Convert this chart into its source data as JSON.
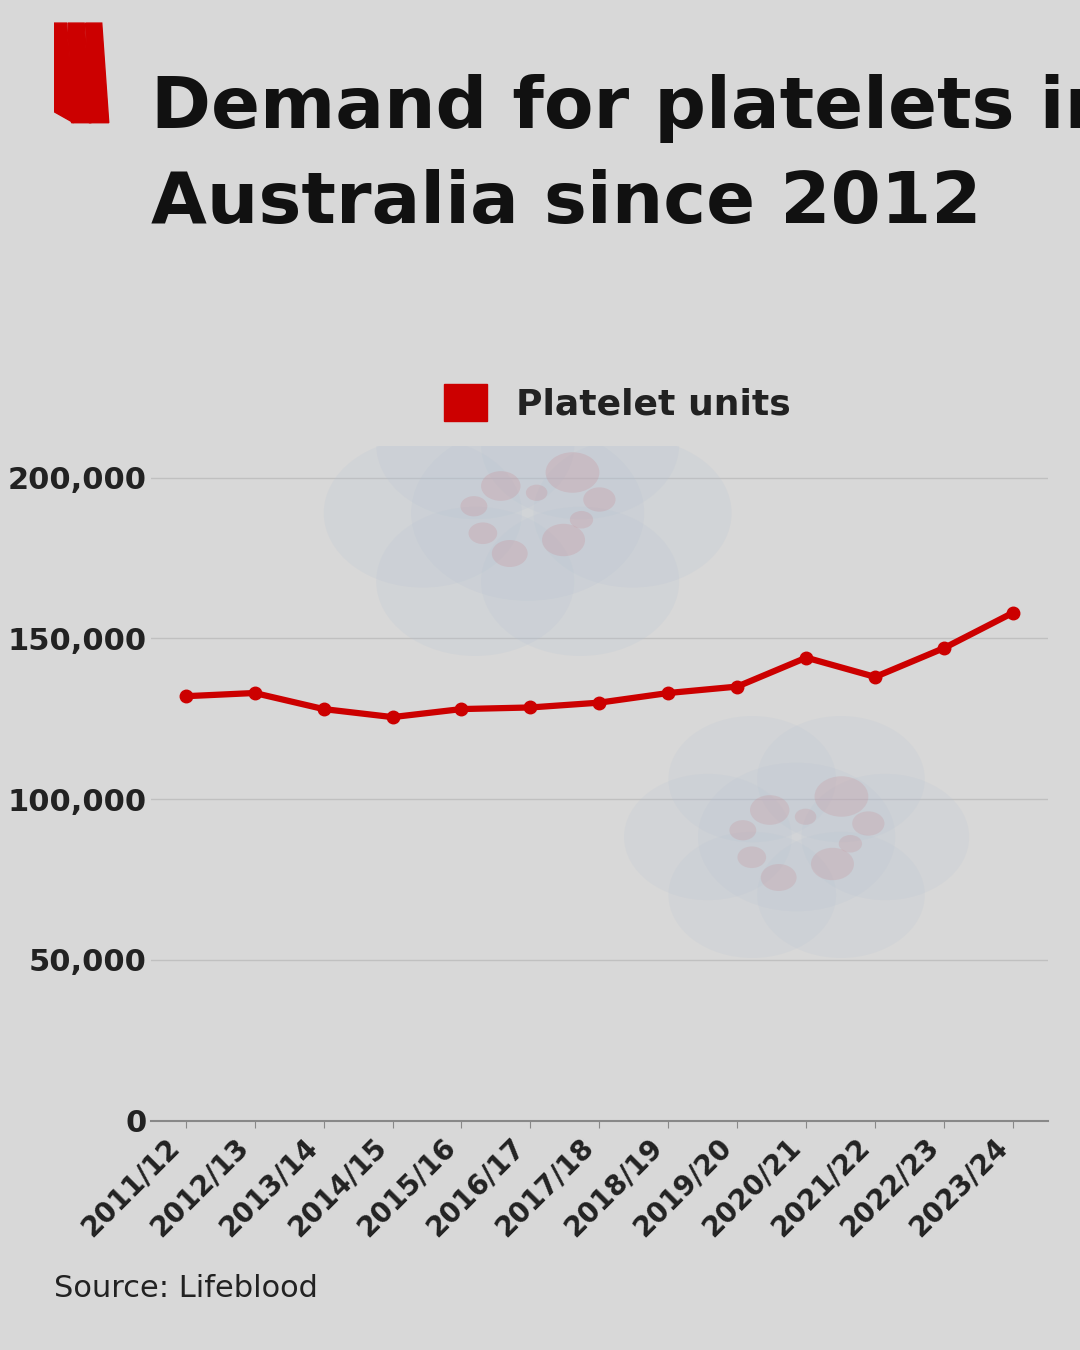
{
  "title_line1": "Demand for platelets in",
  "title_line2": "Australia since 2012",
  "legend_label": "Platelet units",
  "source_text": "Source: Lifeblood",
  "background_color": "#d8d8d8",
  "line_color": "#cc0000",
  "marker_color": "#cc0000",
  "categories": [
    "2011/12",
    "2012/13",
    "2013/14",
    "2014/15",
    "2015/16",
    "2016/17",
    "2017/18",
    "2018/19",
    "2019/20",
    "2020/21",
    "2021/22",
    "2022/23",
    "2023/24"
  ],
  "values": [
    132000,
    133000,
    128000,
    125500,
    128000,
    128500,
    130000,
    133000,
    135000,
    144000,
    138000,
    147000,
    158000
  ],
  "ylim": [
    0,
    210000
  ],
  "yticks": [
    0,
    50000,
    100000,
    150000,
    200000
  ],
  "ytick_labels": [
    "0",
    "50,000",
    "100,000",
    "150,000",
    "200,000"
  ],
  "title_fontsize": 52,
  "tick_fontsize": 22,
  "legend_fontsize": 26,
  "source_fontsize": 22,
  "grid_color": "#c0c0c0",
  "axis_color": "#888888"
}
